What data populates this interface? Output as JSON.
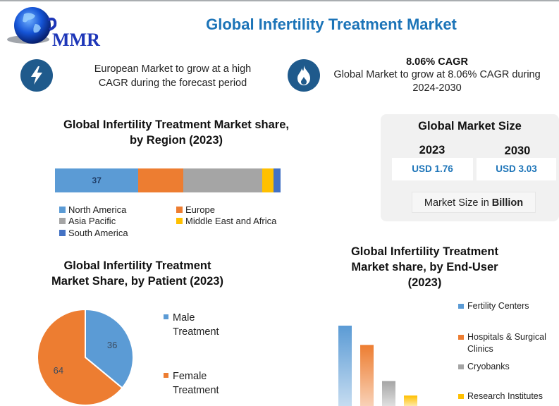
{
  "header": {
    "logo_text": "MMR",
    "title": "Global Infertility Treatment Market"
  },
  "highlights": [
    {
      "icon": "lightning-icon",
      "text_line1": "European Market to grow at a high",
      "text_line2": "CAGR during the forecast period"
    },
    {
      "icon": "flame-icon",
      "title": "8.06% CAGR",
      "text_line1": "Global Market to grow at 8.06% CAGR during",
      "text_line2": "2024-2030"
    }
  ],
  "market_size": {
    "title": "Global Market Size",
    "years": [
      {
        "year": "2023",
        "value": "USD 1.76"
      },
      {
        "year": "2030",
        "value": "USD 3.03"
      }
    ],
    "unit_prefix": "Market Size in ",
    "unit_bold": "Billion"
  },
  "colors": {
    "title_blue": "#1c74b8",
    "icon_blue": "#1f5a8c",
    "series_blue": "#5b9bd5",
    "series_orange": "#ed7d31",
    "series_gray": "#a5a5a5",
    "series_yellow": "#ffc000",
    "series_darkblue": "#4472c4"
  },
  "chart_data": [
    {
      "type": "bar",
      "orientation": "horizontal-stacked",
      "title_line1": "Global Infertility Treatment Market share,",
      "title_line2": "by Region (2023)",
      "unit": "%",
      "series": [
        {
          "name": "North America",
          "value": 37,
          "label": "37",
          "color": "#5b9bd5"
        },
        {
          "name": "Europe",
          "value": 20,
          "label": "",
          "color": "#ed7d31"
        },
        {
          "name": "Asia Pacific",
          "value": 35,
          "label": "",
          "color": "#a5a5a5"
        },
        {
          "name": "Middle East and Africa",
          "value": 5,
          "label": "",
          "color": "#ffc000"
        },
        {
          "name": "South America",
          "value": 3,
          "label": "",
          "color": "#4472c4"
        }
      ],
      "legend_position": "bottom"
    },
    {
      "type": "pie",
      "title_line1": "Global Infertility Treatment",
      "title_line2": "Market Share, by Patient (2023)",
      "slices": [
        {
          "name_line1": "Male",
          "name_line2": "Treatment",
          "value": 36,
          "label": "36",
          "color": "#5b9bd5"
        },
        {
          "name_line1": "Female",
          "name_line2": "Treatment",
          "value": 64,
          "label": "64",
          "color": "#ed7d31"
        }
      ],
      "legend_position": "right"
    },
    {
      "type": "bar",
      "orientation": "vertical",
      "title_line1": "Global Infertility Treatment",
      "title_line2": "Market share, by End-User",
      "title_line3": "(2023)",
      "categories": [
        "Fertility Centers",
        "Hospitals & Surgical Clinics",
        "Cryobanks",
        "Research Institutes"
      ],
      "legend_lines": [
        [
          "Fertility Centers"
        ],
        [
          "Hospitals & Surgical",
          "Clinics"
        ],
        [
          "Cryobanks"
        ],
        [
          "Research Institutes"
        ]
      ],
      "values": [
        100,
        76,
        31,
        13
      ],
      "value_note": "relative scale, unlabeled in image",
      "colors": [
        "#5b9bd5",
        "#ed7d31",
        "#a5a5a5",
        "#ffc000"
      ],
      "legend_position": "right"
    }
  ]
}
